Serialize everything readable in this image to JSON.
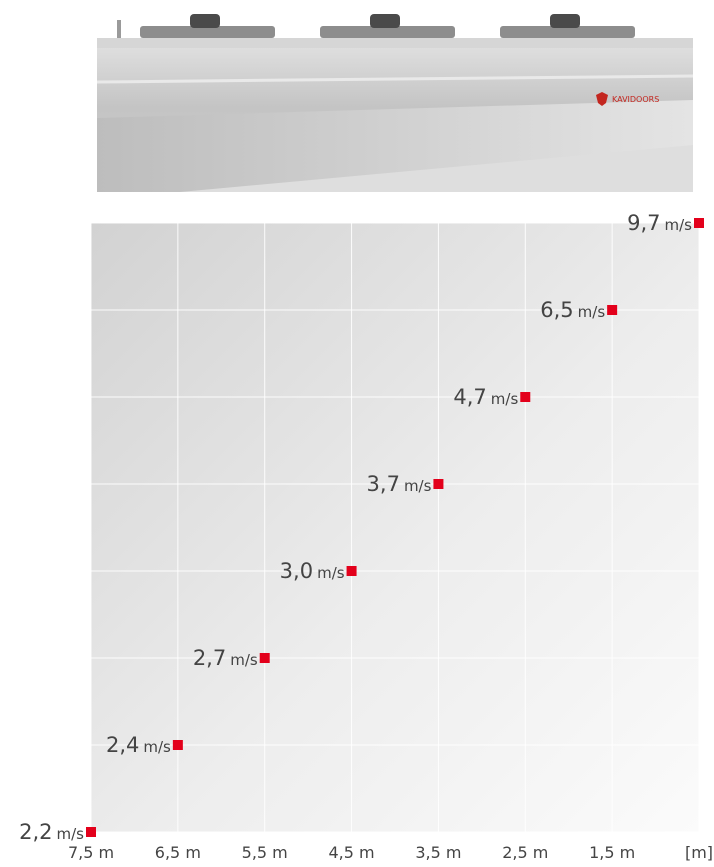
{
  "product": {
    "brand_logo_text": "KAVIDOORS",
    "colors": {
      "body": "#c9c9c9",
      "accent": "#c3261f"
    }
  },
  "chart_data": {
    "type": "scatter",
    "title": "",
    "xlabel": "[m]",
    "ylabel": "",
    "x_direction": "descending",
    "xlim": [
      7.5,
      0.5
    ],
    "x_ticks": [
      "7,5 m",
      "6,5 m",
      "5,5 m",
      "4,5 m",
      "3,5 m",
      "2,5 m",
      "1,5 m"
    ],
    "unit": "m/s",
    "grid": true,
    "marker_color": "#e3001b",
    "points": [
      {
        "x": 7.5,
        "y": 2.2,
        "label": "2,2",
        "unit": "m/s"
      },
      {
        "x": 6.5,
        "y": 2.4,
        "label": "2,4",
        "unit": "m/s"
      },
      {
        "x": 5.5,
        "y": 2.7,
        "label": "2,7",
        "unit": "m/s"
      },
      {
        "x": 4.5,
        "y": 3.0,
        "label": "3,0",
        "unit": "m/s"
      },
      {
        "x": 3.5,
        "y": 3.7,
        "label": "3,7",
        "unit": "m/s"
      },
      {
        "x": 2.5,
        "y": 4.7,
        "label": "4,7",
        "unit": "m/s"
      },
      {
        "x": 1.5,
        "y": 6.5,
        "label": "6,5",
        "unit": "m/s"
      },
      {
        "x": 0.5,
        "y": 9.7,
        "label": "9,7",
        "unit": "m/s"
      }
    ]
  }
}
